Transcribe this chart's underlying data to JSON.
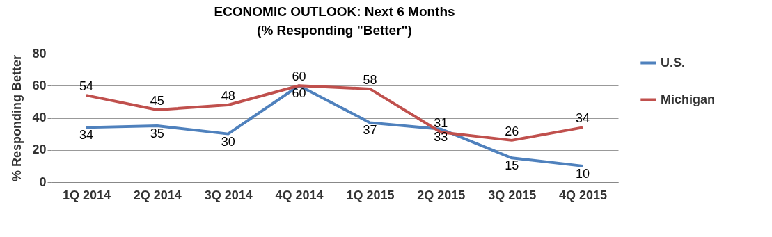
{
  "chart_data": {
    "type": "line",
    "title": "ECONOMIC OUTLOOK:  Next 6 Months",
    "subtitle": "(% Responding \"Better\")",
    "ylabel": "% Responding Better",
    "categories": [
      "1Q 2014",
      "2Q 2014",
      "3Q 2014",
      "4Q 2014",
      "1Q 2015",
      "2Q 2015",
      "3Q 2015",
      "4Q 2015"
    ],
    "series": [
      {
        "name": "U.S.",
        "color": "#4f81bd",
        "values": [
          34,
          35,
          30,
          60,
          37,
          33,
          15,
          10
        ]
      },
      {
        "name": "Michigan",
        "color": "#c0504d",
        "values": [
          54,
          45,
          48,
          60,
          58,
          31,
          26,
          34
        ]
      }
    ],
    "ylim": [
      0,
      80
    ],
    "yticks": [
      0,
      20,
      40,
      60,
      80
    ],
    "grid": "y",
    "legend": "right",
    "data_labels": true,
    "marker": "none",
    "line_style": "solid"
  }
}
